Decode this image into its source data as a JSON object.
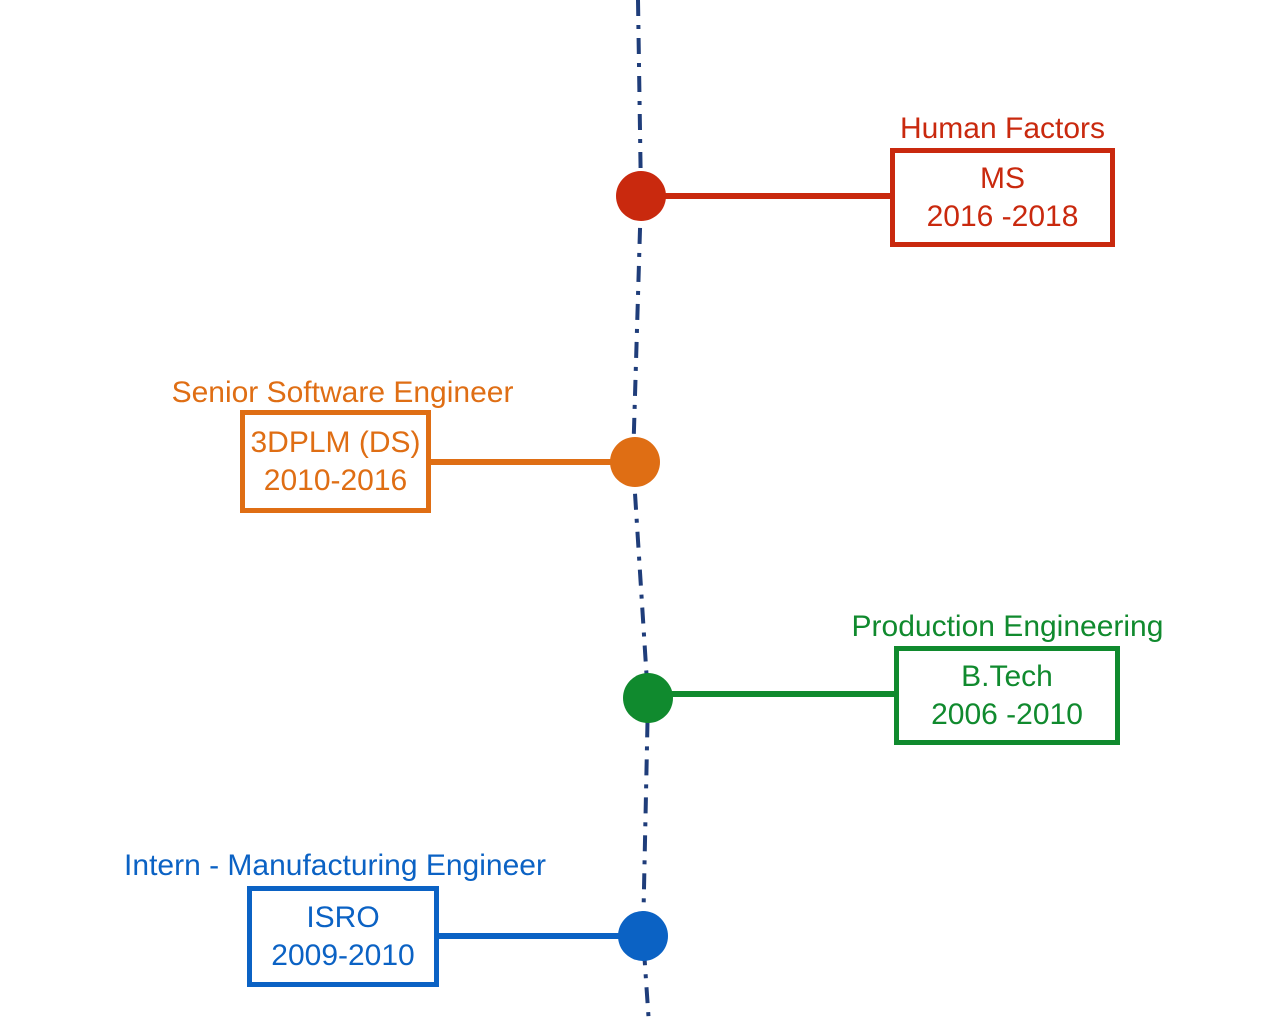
{
  "colors": {
    "spine": "#1f3d7a",
    "red": "#c9290e",
    "orange": "#df6e14",
    "green": "#108a2e",
    "blue": "#0b62c4"
  },
  "events": [
    {
      "title": "Human Factors",
      "line1": "MS",
      "line2": "2016 -2018",
      "color": "red"
    },
    {
      "title": "Senior Software Engineer",
      "line1": "3DPLM (DS)",
      "line2": "2010-2016",
      "color": "orange"
    },
    {
      "title": "Production Engineering",
      "line1": "B.Tech",
      "line2": "2006 -2010",
      "color": "green"
    },
    {
      "title": "Intern - Manufacturing Engineer",
      "line1": "ISRO",
      "line2": "2009-2010",
      "color": "blue"
    }
  ]
}
